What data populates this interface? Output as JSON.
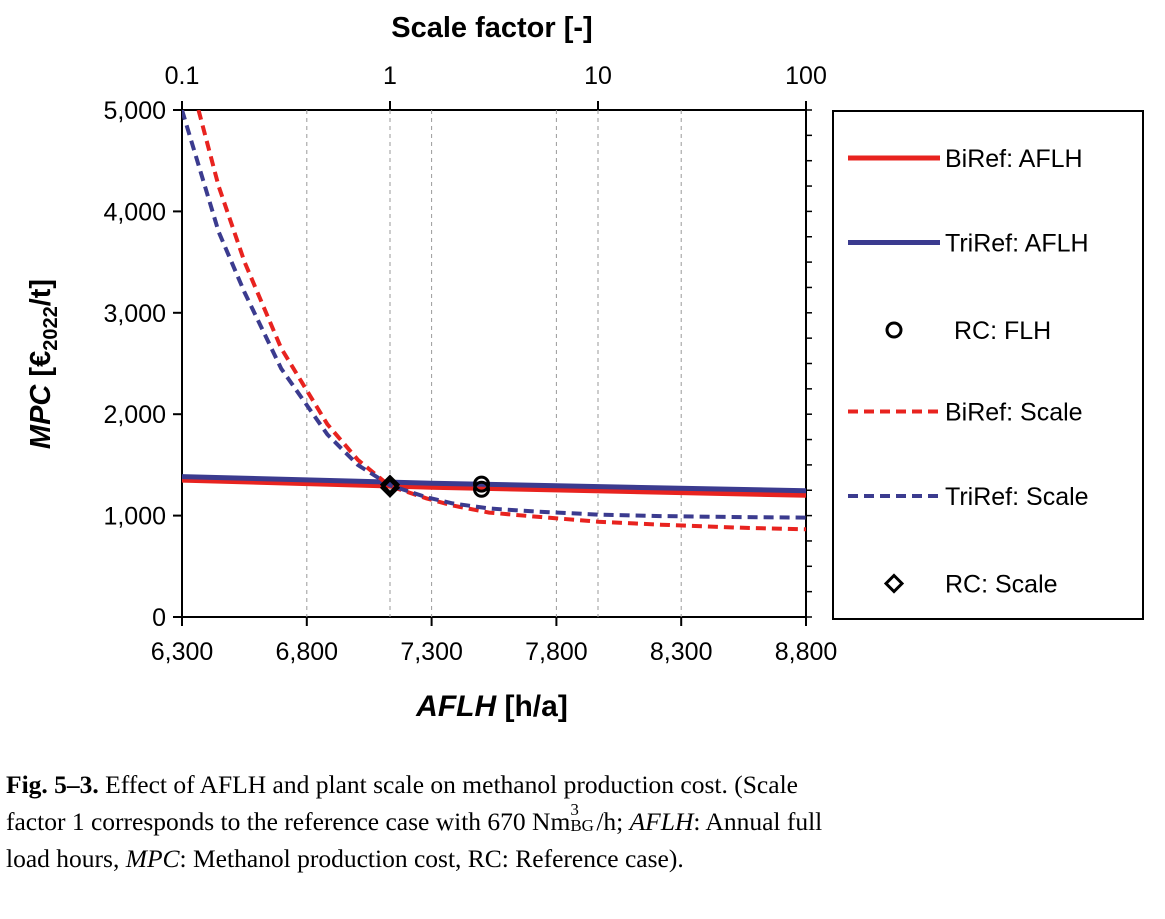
{
  "chart_data": {
    "type": "line",
    "x_axis": {
      "label_italic": "AFLH",
      "label_unit": " [h/a]",
      "range": [
        6300,
        8800
      ],
      "ticks": [
        6300,
        6800,
        7300,
        7800,
        8300,
        8800
      ],
      "tick_labels": [
        "6,300",
        "6,800",
        "7,300",
        "7,800",
        "8,300",
        "8,800"
      ]
    },
    "x2_axis": {
      "label": "Scale factor [-]",
      "scale": "log",
      "range": [
        0.1,
        100
      ],
      "ticks": [
        0.1,
        1,
        10,
        100
      ],
      "tick_labels": [
        "0.1",
        "1",
        "10",
        "100"
      ]
    },
    "y_axis": {
      "label_italic": "MPC",
      "label_unit_prefix": "[€",
      "label_subscript": "2022",
      "label_unit_suffix": "/t]",
      "range": [
        0,
        5000
      ],
      "ticks": [
        0,
        1000,
        2000,
        3000,
        4000,
        5000
      ],
      "tick_labels": [
        "0",
        "1,000",
        "2,000",
        "3,000",
        "4,000",
        "5,000"
      ]
    },
    "grid": "vertical dashed",
    "legend_position": "right",
    "series": [
      {
        "name": "BiRef: AFLH",
        "axis": "bottom",
        "color": "#e8231f",
        "style": "solid",
        "x": [
          6300,
          7300,
          8800
        ],
        "y": [
          1350,
          1280,
          1200
        ]
      },
      {
        "name": "TriRef: AFLH",
        "axis": "bottom",
        "color": "#3b3b8f",
        "style": "solid",
        "x": [
          6300,
          7300,
          8800
        ],
        "y": [
          1385,
          1320,
          1245
        ]
      },
      {
        "name": "RC: FLH",
        "axis": "bottom",
        "color": "#000000",
        "style": "circle",
        "x": [
          7500,
          7500
        ],
        "y": [
          1260,
          1310
        ]
      },
      {
        "name": "BiRef: Scale",
        "axis": "top",
        "color": "#e8231f",
        "style": "dashed",
        "x": [
          0.12,
          0.15,
          0.2,
          0.3,
          0.5,
          0.7,
          1,
          1.5,
          2,
          3,
          5,
          10,
          20,
          50,
          100
        ],
        "y": [
          5000,
          4250,
          3500,
          2650,
          1900,
          1550,
          1290,
          1170,
          1100,
          1030,
          990,
          940,
          910,
          880,
          865
        ]
      },
      {
        "name": "TriRef: Scale",
        "axis": "top",
        "color": "#3b3b8f",
        "style": "dashed",
        "x": [
          0.1,
          0.15,
          0.2,
          0.3,
          0.5,
          0.7,
          1,
          1.5,
          2,
          3,
          5,
          10,
          20,
          50,
          100
        ],
        "y": [
          5000,
          3800,
          3200,
          2450,
          1800,
          1500,
          1300,
          1180,
          1120,
          1070,
          1040,
          1010,
          995,
          985,
          980
        ]
      },
      {
        "name": "RC: Scale",
        "axis": "top",
        "color": "#000000",
        "style": "diamond",
        "x": [
          1,
          1
        ],
        "y": [
          1275,
          1305
        ]
      }
    ],
    "caption": {
      "label": "Fig. 5–3.",
      "line1": " Effect of AFLH and plant scale on methanol production cost. (Scale",
      "line2a": "factor 1 corresponds to the reference case with 670 Nm",
      "line2_sup": "3",
      "line2_sub": "BG",
      "line2b": "/h; ",
      "line2_italic": "AFLH",
      "line2c": ": Annual full",
      "line3a": "load hours, ",
      "line3_italic": "MPC",
      "line3b": ": Methanol production cost, RC: Reference case)."
    }
  }
}
